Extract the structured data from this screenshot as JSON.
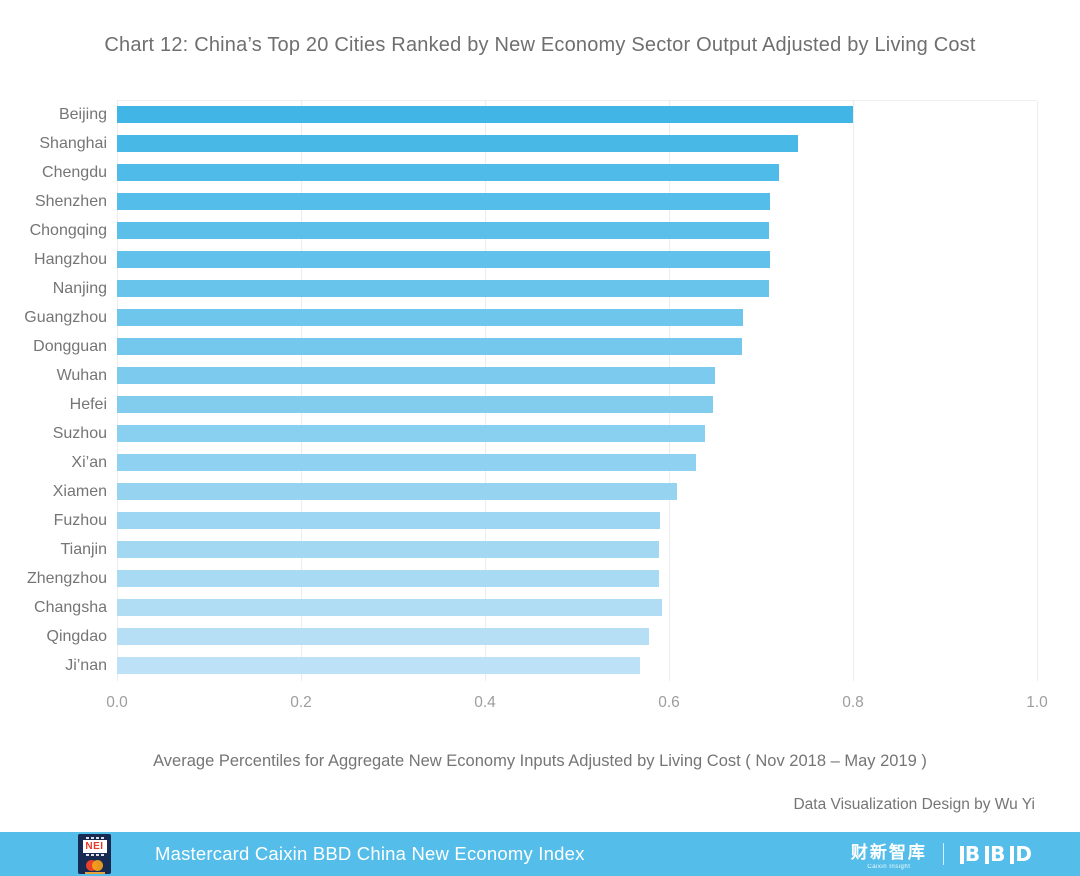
{
  "title": "Chart 12: China’s Top 20 Cities Ranked by New Economy Sector Output Adjusted by Living Cost",
  "chart_data": {
    "type": "bar",
    "orientation": "horizontal",
    "categories": [
      "Beijing",
      "Shanghai",
      "Chengdu",
      "Shenzhen",
      "Chongqing",
      "Hangzhou",
      "Nanjing",
      "Guangzhou",
      "Dongguan",
      "Wuhan",
      "Hefei",
      "Suzhou",
      "Xi’an",
      "Xiamen",
      "Fuzhou",
      "Tianjin",
      "Zhengzhou",
      "Changsha",
      "Qingdao",
      "Ji’nan"
    ],
    "values": [
      0.8,
      0.74,
      0.72,
      0.71,
      0.709,
      0.71,
      0.709,
      0.68,
      0.679,
      0.65,
      0.648,
      0.639,
      0.629,
      0.609,
      0.59,
      0.589,
      0.589,
      0.592,
      0.578,
      0.568
    ],
    "xlim": [
      0.0,
      1.0
    ],
    "x_ticks": [
      "0.0",
      "0.2",
      "0.4",
      "0.6",
      "0.8",
      "1.0"
    ],
    "grid": true,
    "legend": "none",
    "bar_color_start": "#41B6E6",
    "bar_color_end": "#BDE1F6",
    "grid_color": "#ededed",
    "xlabel": "",
    "ylabel": ""
  },
  "caption": "Average Percentiles for Aggregate New Economy Inputs Adjusted by Living Cost ( Nov 2018 – May 2019 )",
  "credit": "Data Visualization Design by Wu Yi",
  "footer": {
    "bg_color": "#54BDE9",
    "title": "Mastercard Caixin BBD China New Economy Index",
    "nei_logo_text": "NEI",
    "caixin_logo_text": "财新智库",
    "caixin_logo_subtext": "Caixin Insight",
    "bbd_logo_letters": [
      "B",
      "B",
      "D"
    ]
  }
}
